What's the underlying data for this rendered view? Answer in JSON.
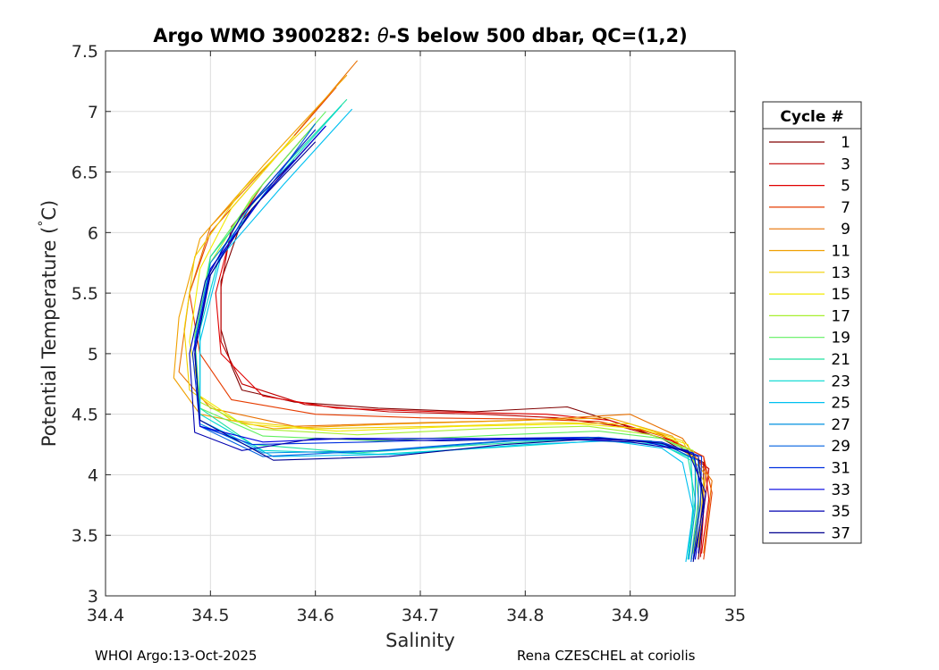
{
  "footer": {
    "left": "WHOI Argo:13-Oct-2025",
    "right": "Rena CZESCHEL at coriolis"
  },
  "chart_data": {
    "type": "line",
    "title_prefix": "Argo WMO 3900282: ",
    "title_theta": "θ",
    "title_suffix": "-S below 500 dbar,  QC=(1,2)",
    "xlabel": "Salinity",
    "ylabel_main": "Potential Temperature (",
    "ylabel_sup": "°",
    "ylabel_end": "C)",
    "xlim": [
      34.4,
      35.0
    ],
    "ylim": [
      3.0,
      7.5
    ],
    "xticks": [
      "34.4",
      "34.5",
      "34.6",
      "34.7",
      "34.8",
      "34.9",
      "35"
    ],
    "yticks": [
      "3",
      "3.5",
      "4",
      "4.5",
      "5",
      "5.5",
      "6",
      "6.5",
      "7",
      "7.5"
    ],
    "grid": true,
    "legend": {
      "title": "Cycle #",
      "placement": "right-outside",
      "entries": [
        {
          "label": "1",
          "color": "#800000"
        },
        {
          "label": "3",
          "color": "#c00000"
        },
        {
          "label": "5",
          "color": "#e00000"
        },
        {
          "label": "7",
          "color": "#e63c00"
        },
        {
          "label": "9",
          "color": "#e87000"
        },
        {
          "label": "11",
          "color": "#f0a000"
        },
        {
          "label": "13",
          "color": "#f0d000"
        },
        {
          "label": "15",
          "color": "#f2ea00"
        },
        {
          "label": "17",
          "color": "#a8f030"
        },
        {
          "label": "19",
          "color": "#60f060"
        },
        {
          "label": "21",
          "color": "#20e0a0"
        },
        {
          "label": "23",
          "color": "#00d8d0"
        },
        {
          "label": "25",
          "color": "#00c0f0"
        },
        {
          "label": "27",
          "color": "#0090e0"
        },
        {
          "label": "29",
          "color": "#0060e0"
        },
        {
          "label": "31",
          "color": "#0030e0"
        },
        {
          "label": "33",
          "color": "#0000e0"
        },
        {
          "label": "35",
          "color": "#0000b0"
        },
        {
          "label": "37",
          "color": "#000090"
        }
      ]
    },
    "series": [
      {
        "color": "#800000",
        "x": [
          34.61,
          34.57,
          34.53,
          34.51,
          34.51,
          34.52,
          34.53,
          34.58,
          34.66,
          34.75,
          34.84,
          34.88,
          34.93,
          34.97,
          34.97,
          34.965
        ],
        "y": [
          6.88,
          6.5,
          6.1,
          5.6,
          5.2,
          4.9,
          4.7,
          4.6,
          4.55,
          4.52,
          4.56,
          4.45,
          4.3,
          4.1,
          3.7,
          3.3
        ]
      },
      {
        "color": "#c00000",
        "x": [
          34.6,
          34.56,
          34.52,
          34.51,
          34.51,
          34.53,
          34.59,
          34.67,
          34.76,
          34.83,
          34.89,
          34.94,
          34.975,
          34.97,
          34.967
        ],
        "y": [
          6.85,
          6.45,
          6.05,
          5.55,
          5.1,
          4.75,
          4.58,
          4.52,
          4.5,
          4.47,
          4.4,
          4.28,
          4.05,
          3.7,
          3.32
        ]
      },
      {
        "color": "#e00000",
        "x": [
          34.59,
          34.55,
          34.52,
          34.505,
          34.51,
          34.55,
          34.62,
          34.72,
          34.82,
          34.88,
          34.93,
          34.97,
          34.975,
          34.968
        ],
        "y": [
          6.8,
          6.4,
          6.0,
          5.5,
          5.0,
          4.65,
          4.55,
          4.52,
          4.5,
          4.45,
          4.32,
          4.15,
          3.8,
          3.35
        ]
      },
      {
        "color": "#e63c00",
        "x": [
          34.62,
          34.56,
          34.5,
          34.48,
          34.49,
          34.52,
          34.6,
          34.7,
          34.8,
          34.87,
          34.93,
          34.97,
          34.978,
          34.97
        ],
        "y": [
          7.2,
          6.6,
          6.0,
          5.5,
          5.0,
          4.62,
          4.5,
          4.47,
          4.46,
          4.44,
          4.33,
          4.15,
          3.85,
          3.3
        ]
      },
      {
        "color": "#e87000",
        "x": [
          34.64,
          34.57,
          34.5,
          34.48,
          34.47,
          34.5,
          34.58,
          34.7,
          34.8,
          34.9,
          34.95,
          34.978,
          34.97
        ],
        "y": [
          7.42,
          6.7,
          6.05,
          5.5,
          4.85,
          4.55,
          4.4,
          4.43,
          4.45,
          4.5,
          4.3,
          3.95,
          3.35
        ]
      },
      {
        "color": "#f0a000",
        "x": [
          34.63,
          34.55,
          34.49,
          34.47,
          34.465,
          34.49,
          34.56,
          34.68,
          34.8,
          34.88,
          34.94,
          34.972,
          34.965
        ],
        "y": [
          7.3,
          6.55,
          5.95,
          5.3,
          4.8,
          4.5,
          4.38,
          4.42,
          4.45,
          4.47,
          4.32,
          4.0,
          3.4
        ]
      },
      {
        "color": "#f0d000",
        "x": [
          34.6,
          34.53,
          34.485,
          34.475,
          34.48,
          34.52,
          34.6,
          34.72,
          34.83,
          34.9,
          34.95,
          34.97,
          34.965
        ],
        "y": [
          6.95,
          6.35,
          5.8,
          5.2,
          4.7,
          4.45,
          4.38,
          4.4,
          4.43,
          4.42,
          4.28,
          3.95,
          3.4
        ]
      },
      {
        "color": "#f2ea00",
        "x": [
          34.58,
          34.52,
          34.49,
          34.48,
          34.49,
          34.53,
          34.62,
          34.74,
          34.85,
          34.91,
          34.955,
          34.968,
          34.962
        ],
        "y": [
          6.8,
          6.2,
          5.7,
          5.1,
          4.65,
          4.42,
          4.36,
          4.4,
          4.42,
          4.38,
          4.25,
          3.9,
          3.38
        ]
      },
      {
        "color": "#a8f030",
        "x": [
          34.6,
          34.54,
          34.5,
          34.485,
          34.49,
          34.54,
          34.64,
          34.76,
          34.86,
          34.92,
          34.96,
          34.968,
          34.96
        ],
        "y": [
          6.9,
          6.3,
          5.75,
          5.1,
          4.6,
          4.38,
          4.33,
          4.38,
          4.4,
          4.33,
          4.2,
          3.85,
          3.35
        ]
      },
      {
        "color": "#60f060",
        "x": [
          34.61,
          34.55,
          34.5,
          34.485,
          34.49,
          34.55,
          34.66,
          34.78,
          34.87,
          34.93,
          34.96,
          34.965,
          34.958
        ],
        "y": [
          7.0,
          6.4,
          5.8,
          5.15,
          4.55,
          4.32,
          4.28,
          4.33,
          4.36,
          4.3,
          4.18,
          3.8,
          3.3
        ]
      },
      {
        "color": "#20e0a0",
        "x": [
          34.63,
          34.56,
          34.5,
          34.49,
          34.49,
          34.54,
          34.64,
          34.76,
          34.86,
          34.92,
          34.955,
          34.962,
          34.955
        ],
        "y": [
          7.1,
          6.45,
          5.8,
          5.2,
          4.55,
          4.25,
          4.18,
          4.25,
          4.3,
          4.28,
          4.15,
          3.8,
          3.3
        ]
      },
      {
        "color": "#00d8d0",
        "x": [
          34.625,
          34.56,
          34.51,
          34.49,
          34.49,
          34.55,
          34.66,
          34.78,
          34.87,
          34.93,
          34.958,
          34.96,
          34.955
        ],
        "y": [
          7.05,
          6.42,
          5.85,
          5.2,
          4.5,
          4.2,
          4.17,
          4.23,
          4.28,
          4.25,
          4.12,
          3.75,
          3.3
        ]
      },
      {
        "color": "#00c0f0",
        "x": [
          34.635,
          34.57,
          34.51,
          34.49,
          34.49,
          34.56,
          34.68,
          34.8,
          34.88,
          34.93,
          34.95,
          34.96,
          34.953
        ],
        "y": [
          7.02,
          6.4,
          5.8,
          5.1,
          4.45,
          4.15,
          4.17,
          4.25,
          4.28,
          4.22,
          4.1,
          3.7,
          3.28
        ]
      },
      {
        "color": "#0090e0",
        "x": [
          34.61,
          34.55,
          34.5,
          34.485,
          34.49,
          34.55,
          34.67,
          34.79,
          34.88,
          34.935,
          34.962,
          34.962,
          34.956
        ],
        "y": [
          6.88,
          6.3,
          5.75,
          5.1,
          4.42,
          4.18,
          4.2,
          4.28,
          4.3,
          4.25,
          4.12,
          3.72,
          3.3
        ]
      },
      {
        "color": "#0060e0",
        "x": [
          34.6,
          34.55,
          34.5,
          34.485,
          34.49,
          34.55,
          34.66,
          34.78,
          34.87,
          34.93,
          34.965,
          34.965,
          34.958
        ],
        "y": [
          6.9,
          6.3,
          5.7,
          5.05,
          4.4,
          4.15,
          4.2,
          4.28,
          4.31,
          4.26,
          4.12,
          3.7,
          3.28
        ]
      },
      {
        "color": "#0030e0",
        "x": [
          34.6,
          34.54,
          34.5,
          34.483,
          34.49,
          34.54,
          34.65,
          34.77,
          34.86,
          34.93,
          34.968,
          34.967,
          34.96
        ],
        "y": [
          6.85,
          6.25,
          5.65,
          5.0,
          4.4,
          4.25,
          4.27,
          4.3,
          4.31,
          4.27,
          4.15,
          3.75,
          3.3
        ]
      },
      {
        "color": "#0000e0",
        "x": [
          34.61,
          34.55,
          34.5,
          34.485,
          34.49,
          34.55,
          34.63,
          34.74,
          34.84,
          34.91,
          34.96,
          34.97,
          34.962
        ],
        "y": [
          6.88,
          6.3,
          5.7,
          5.05,
          4.4,
          4.27,
          4.3,
          4.3,
          4.3,
          4.28,
          4.18,
          3.8,
          3.3
        ]
      },
      {
        "color": "#0000b0",
        "x": [
          34.58,
          34.53,
          34.495,
          34.48,
          34.485,
          34.53,
          34.6,
          34.72,
          34.82,
          34.9,
          34.955,
          34.972,
          34.965
        ],
        "y": [
          6.6,
          6.15,
          5.6,
          5.0,
          4.35,
          4.2,
          4.3,
          4.28,
          4.3,
          4.27,
          4.2,
          3.85,
          3.35
        ]
      },
      {
        "color": "#000090",
        "x": [
          34.6,
          34.54,
          34.5,
          34.485,
          34.49,
          34.56,
          34.67,
          34.78,
          34.87,
          34.93,
          34.965,
          34.97,
          34.96
        ],
        "y": [
          6.75,
          6.2,
          5.65,
          5.0,
          4.45,
          4.12,
          4.15,
          4.25,
          4.3,
          4.26,
          4.15,
          3.75,
          3.28
        ]
      }
    ]
  }
}
